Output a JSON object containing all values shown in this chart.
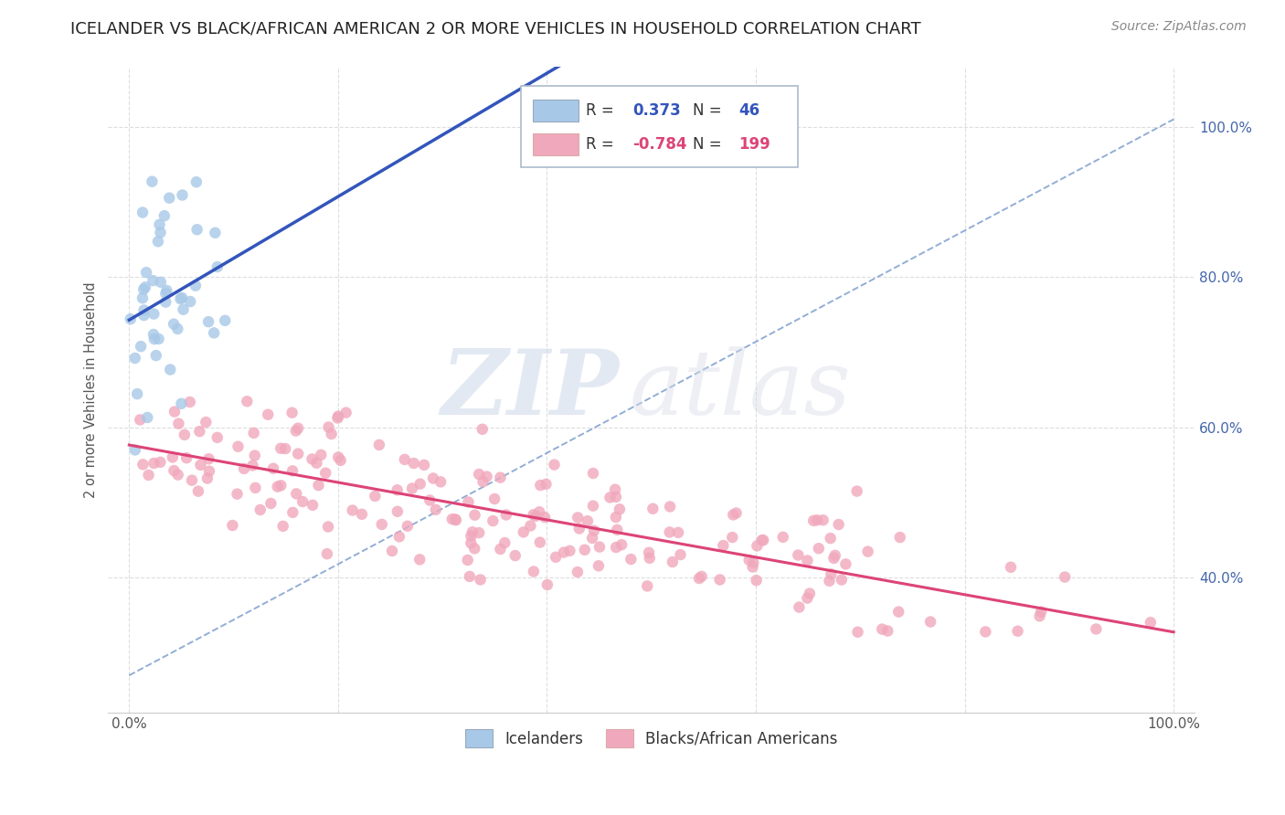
{
  "title": "ICELANDER VS BLACK/AFRICAN AMERICAN 2 OR MORE VEHICLES IN HOUSEHOLD CORRELATION CHART",
  "source": "Source: ZipAtlas.com",
  "ylabel": "2 or more Vehicles in Household",
  "watermark_zip": "ZIP",
  "watermark_atlas": "atlas",
  "icelander_R": 0.373,
  "icelander_N": 46,
  "black_R": -0.784,
  "black_N": 199,
  "xlim": [
    -0.02,
    1.02
  ],
  "ylim": [
    0.22,
    1.08
  ],
  "ytick_positions": [
    0.4,
    0.6,
    0.8,
    1.0
  ],
  "ytick_labels": [
    "40.0%",
    "60.0%",
    "80.0%",
    "100.0%"
  ],
  "xtick_positions": [
    0.0,
    0.2,
    0.4,
    0.6,
    0.8,
    1.0
  ],
  "xticklabels_show": [
    "0.0%",
    "",
    "",
    "",
    "",
    "100.0%"
  ],
  "icelander_color": "#a8c8e8",
  "icelander_line_color": "#3355bb",
  "black_color": "#f0a8bc",
  "black_line_color": "#dd4477",
  "dashed_line_color": "#7799cc",
  "tick_color": "#4466aa",
  "ylabel_color": "#555555",
  "title_color": "#222222",
  "source_color": "#888888",
  "grid_color": "#dddddd",
  "title_fontsize": 13,
  "axis_label_fontsize": 10.5,
  "tick_fontsize": 11,
  "source_fontsize": 10,
  "marker_size": 9,
  "seed": 7
}
